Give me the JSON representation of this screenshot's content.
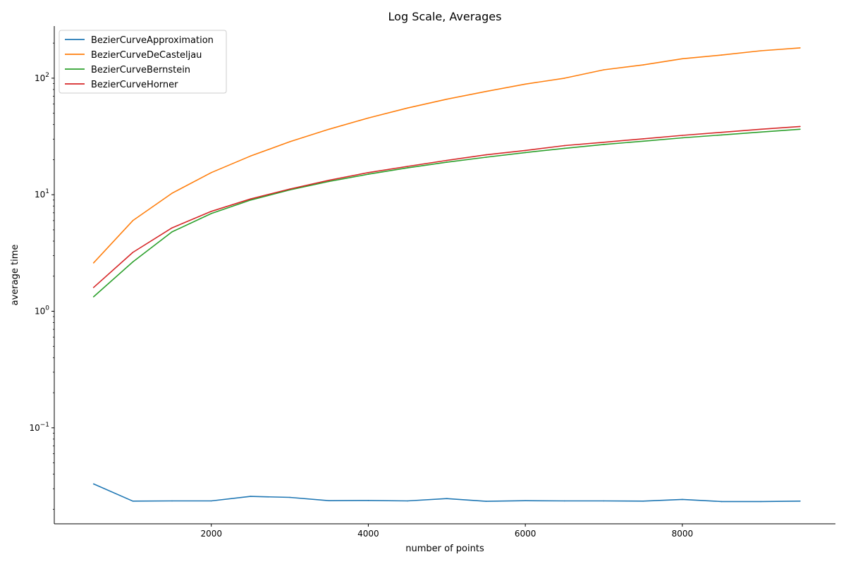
{
  "chart_data": {
    "type": "line",
    "title": "Log Scale, Averages",
    "xlabel": "number of points",
    "ylabel": "average time",
    "y_scale": "log",
    "xlim": [
      0,
      9950
    ],
    "ylim": [
      0.015,
      280
    ],
    "x_ticks": [
      2000,
      4000,
      6000,
      8000
    ],
    "x_tick_labels": [
      "2000",
      "4000",
      "6000",
      "8000"
    ],
    "y_ticks": [
      0.1,
      1,
      10,
      100
    ],
    "y_tick_base": "10",
    "y_tick_exponents": [
      "−1",
      "0",
      "1",
      "2"
    ],
    "grid": false,
    "legend_position": "top-left",
    "x": [
      500,
      1000,
      1500,
      2000,
      2500,
      3000,
      3500,
      4000,
      4500,
      5000,
      5500,
      6000,
      6500,
      7000,
      7500,
      8000,
      8500,
      9000,
      9500
    ],
    "series": [
      {
        "name": "BezierCurveApproximation",
        "color": "#1f77b4",
        "values": [
          0.033,
          0.0235,
          0.0236,
          0.0236,
          0.0258,
          0.0253,
          0.0237,
          0.0238,
          0.0236,
          0.0247,
          0.0234,
          0.0237,
          0.0236,
          0.0236,
          0.0235,
          0.0243,
          0.0233,
          0.0233,
          0.0235
        ]
      },
      {
        "name": "BezierCurveDeCasteljau",
        "color": "#ff7f0e",
        "values": [
          2.6,
          6.0,
          10.3,
          15.5,
          21.5,
          28.5,
          36.5,
          45.5,
          55.5,
          66.0,
          77.0,
          89.0,
          100.0,
          118.0,
          130.0,
          147.0,
          158.0,
          172.0,
          182.0
        ]
      },
      {
        "name": "BezierCurveBernstein",
        "color": "#2ca02c",
        "values": [
          1.33,
          2.65,
          4.8,
          6.9,
          9.0,
          11.0,
          13.0,
          15.0,
          17.0,
          19.0,
          21.0,
          23.0,
          25.0,
          27.0,
          28.8,
          30.8,
          32.6,
          34.5,
          36.5
        ]
      },
      {
        "name": "BezierCurveHorner",
        "color": "#d62728",
        "values": [
          1.6,
          3.2,
          5.2,
          7.2,
          9.2,
          11.2,
          13.3,
          15.5,
          17.5,
          19.7,
          22.0,
          24.0,
          26.4,
          28.2,
          30.2,
          32.3,
          34.3,
          36.5,
          38.5
        ]
      }
    ]
  }
}
